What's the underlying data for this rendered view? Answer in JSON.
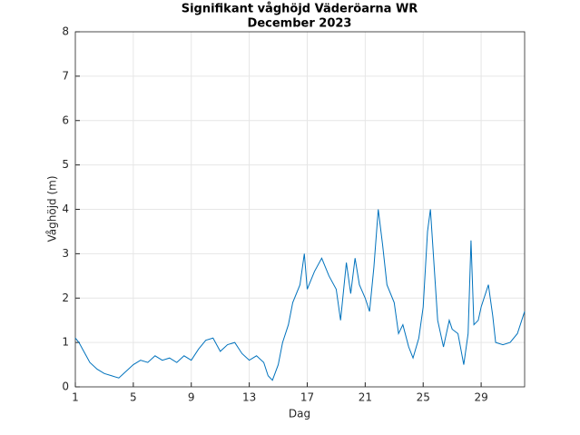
{
  "chart_data": {
    "type": "line",
    "title": "Signifikant våghöjd Väderöarna WR",
    "subtitle": "December 2023",
    "xlabel": "Dag",
    "ylabel": "Våghöjd (m)",
    "x": [
      1,
      1.25,
      1.5,
      1.75,
      2,
      2.5,
      3,
      3.5,
      4,
      4.5,
      5,
      5.5,
      6,
      6.5,
      7,
      7.5,
      8,
      8.5,
      9,
      9.5,
      10,
      10.5,
      11,
      11.5,
      12,
      12.5,
      13,
      13.5,
      14,
      14.3,
      14.6,
      15,
      15.3,
      15.7,
      16,
      16.5,
      16.8,
      17,
      17.5,
      18,
      18.5,
      19,
      19.3,
      19.7,
      20,
      20.3,
      20.6,
      21,
      21.3,
      21.6,
      21.9,
      22.2,
      22.5,
      23,
      23.3,
      23.6,
      24,
      24.3,
      24.7,
      25,
      25.3,
      25.5,
      25.8,
      26,
      26.4,
      26.8,
      27,
      27.4,
      27.8,
      28.1,
      28.3,
      28.5,
      28.8,
      29,
      29.5,
      29.8,
      30,
      30.5,
      31,
      31.5,
      32
    ],
    "series": [
      {
        "name": "Våghöjd",
        "color": "#0072bd",
        "values": [
          1.1,
          1.0,
          0.85,
          0.7,
          0.55,
          0.4,
          0.3,
          0.25,
          0.2,
          0.35,
          0.5,
          0.6,
          0.55,
          0.7,
          0.6,
          0.65,
          0.55,
          0.7,
          0.6,
          0.85,
          1.05,
          1.1,
          0.8,
          0.95,
          1.0,
          0.75,
          0.6,
          0.7,
          0.55,
          0.25,
          0.15,
          0.5,
          1.0,
          1.4,
          1.9,
          2.3,
          3.0,
          2.2,
          2.6,
          2.9,
          2.5,
          2.2,
          1.5,
          2.8,
          2.1,
          2.9,
          2.3,
          2.0,
          1.7,
          2.7,
          4.0,
          3.2,
          2.3,
          1.9,
          1.2,
          1.4,
          0.9,
          0.65,
          1.1,
          1.8,
          3.5,
          4.0,
          2.5,
          1.5,
          0.9,
          1.5,
          1.3,
          1.2,
          0.5,
          1.2,
          3.3,
          1.4,
          1.5,
          1.8,
          2.3,
          1.6,
          1.0,
          0.95,
          1.0,
          1.2,
          1.7
        ]
      }
    ],
    "xlim": [
      1,
      32
    ],
    "xticks": [
      1,
      5,
      9,
      13,
      17,
      21,
      25,
      29
    ],
    "ylim": [
      0,
      8
    ],
    "yticks": [
      0,
      1,
      2,
      3,
      4,
      5,
      6,
      7,
      8
    ],
    "grid": true
  }
}
